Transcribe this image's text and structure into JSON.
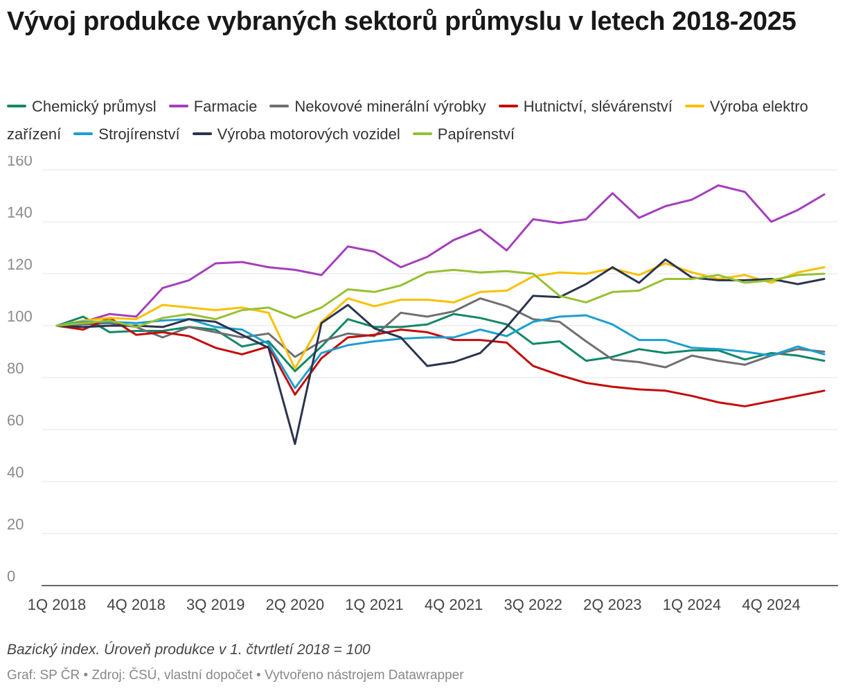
{
  "title": "Vývoj produkce vybraných sektorů průmyslu v letech 2018-2025",
  "note": "Bazický index. Úroveň produkce v 1. čtvrtletí 2018 = 100",
  "source": "Graf: SP ČR • Zdroj: ČSÚ, vlastní dopočet • Vytvořeno nástrojem Datawrapper",
  "chart_data": {
    "type": "line",
    "title": "Vývoj produkce vybraných sektorů průmyslu v letech 2018-2025",
    "xlabel": "",
    "ylabel": "",
    "ylim": [
      0,
      160
    ],
    "yticks": [
      0,
      20,
      40,
      60,
      80,
      100,
      120,
      140,
      160
    ],
    "grid": true,
    "legend_position": "top",
    "categories": [
      "1Q 2018",
      "2Q 2018",
      "3Q 2018",
      "4Q 2018",
      "1Q 2019",
      "2Q 2019",
      "3Q 2019",
      "4Q 2019",
      "1Q 2020",
      "2Q 2020",
      "3Q 2020",
      "4Q 2020",
      "1Q 2021",
      "2Q 2021",
      "3Q 2021",
      "4Q 2021",
      "1Q 2022",
      "2Q 2022",
      "3Q 2022",
      "4Q 2022",
      "1Q 2023",
      "2Q 2023",
      "3Q 2023",
      "4Q 2023",
      "1Q 2024",
      "2Q 2024",
      "3Q 2024",
      "4Q 2024",
      "1Q 2025",
      "2Q 2025"
    ],
    "xtick_labels": [
      "1Q 2018",
      "4Q 2018",
      "3Q 2019",
      "2Q 2020",
      "1Q 2021",
      "4Q 2021",
      "3Q 2022",
      "2Q 2023",
      "1Q 2024",
      "4Q 2024"
    ],
    "series": [
      {
        "name": "Chemický průmysl",
        "color": "#12876a",
        "values": [
          100,
          103.5,
          97.5,
          98,
          98,
          99.5,
          98.5,
          92,
          94,
          82.5,
          92,
          102.5,
          99.5,
          99.5,
          100.5,
          104.5,
          103,
          100.5,
          93,
          94,
          86.5,
          88,
          91,
          89.5,
          90.5,
          90.5,
          87,
          89.5,
          88.5,
          86.5
        ]
      },
      {
        "name": "Farmacie",
        "color": "#a43ebc",
        "values": [
          100,
          101.5,
          104.5,
          103.5,
          114.5,
          117.5,
          124,
          124.5,
          122.5,
          121.5,
          119.5,
          130.5,
          128.5,
          122.5,
          126.5,
          133,
          137,
          129,
          141,
          139.5,
          141,
          151,
          141.5,
          146,
          148.5,
          154,
          151.5,
          140,
          144.5,
          150.5
        ]
      },
      {
        "name": "Nekovové minerální výrobky",
        "color": "#6f6f6f",
        "values": [
          100,
          100.5,
          101,
          99.5,
          95.5,
          99.5,
          97.5,
          95.5,
          97,
          88,
          94,
          97,
          96,
          105,
          103.5,
          105.5,
          110.5,
          107.5,
          102.5,
          101.5,
          94,
          87,
          86,
          84,
          88.5,
          86.5,
          85,
          88.5,
          91,
          90
        ]
      },
      {
        "name": "Hutnictví, slévárenství",
        "color": "#c40a0a",
        "values": [
          100,
          98.5,
          103,
          96.5,
          97.5,
          96,
          91.5,
          89,
          92,
          73.5,
          87.5,
          95.5,
          96.5,
          98.5,
          97.5,
          94.5,
          94.5,
          93.5,
          84.5,
          81,
          78,
          76.5,
          75.5,
          75,
          73,
          70.5,
          69,
          71,
          73,
          75
        ]
      },
      {
        "name": "Výroba elektro zařízení",
        "color": "#f9c000",
        "values": [
          100,
          102,
          103,
          102.5,
          108,
          107,
          106,
          107,
          105,
          83.5,
          101.5,
          110.5,
          107.5,
          110,
          110,
          109,
          113,
          113.5,
          119,
          120.5,
          120,
          122,
          119.5,
          124,
          120.5,
          118,
          119.5,
          116.5,
          120.5,
          122.5
        ]
      },
      {
        "name": "Strojírenství",
        "color": "#1c9ecf",
        "values": [
          100,
          101.5,
          101.5,
          101,
          102,
          102.5,
          99.5,
          98.5,
          93,
          76,
          89.5,
          92.5,
          94,
          95,
          95.5,
          95.5,
          98.5,
          96,
          101.5,
          103.5,
          104,
          100.5,
          94.5,
          94.5,
          91.5,
          91,
          90,
          88.5,
          92,
          89
        ]
      },
      {
        "name": "Výroba motorových vozidel",
        "color": "#2a344f",
        "values": [
          100,
          99.5,
          100,
          100,
          99.5,
          102.5,
          101.5,
          96.5,
          91.5,
          54.5,
          101,
          108,
          99,
          95.5,
          84.5,
          86,
          89.5,
          99.5,
          111.5,
          111,
          116,
          122.5,
          116.5,
          125.5,
          118.5,
          117.5,
          117.5,
          118,
          116,
          118
        ]
      },
      {
        "name": "Papírenství",
        "color": "#96c131",
        "values": [
          100,
          101,
          102,
          99.5,
          103,
          104.5,
          102.5,
          106,
          107,
          103,
          107,
          114,
          113,
          115.5,
          120.5,
          121.5,
          120.5,
          121,
          120,
          111.5,
          109,
          113,
          113.5,
          118,
          118,
          119.5,
          116.5,
          117.5,
          119.5,
          120
        ]
      }
    ]
  }
}
